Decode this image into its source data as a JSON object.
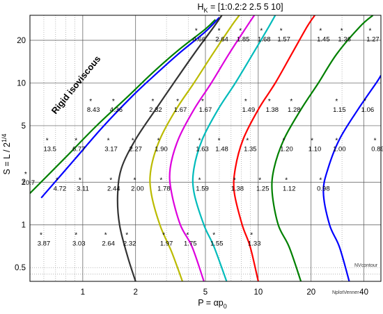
{
  "chart_data": {
    "type": "line",
    "title": "H_K = [1:0.2:2  2.5 5 10]",
    "title_parts": {
      "main": "H",
      "sub": "K",
      "rest": " = [1:0.2:2  2.5 5 10]"
    },
    "xlabel_parts": {
      "main": "P = αp",
      "sub": "0"
    },
    "ylabel_parts": {
      "main": "S = L / 2",
      "sup": "1/4"
    },
    "x_scale": "log",
    "y_scale": "log",
    "xlim": [
      0.5,
      50
    ],
    "ylim": [
      0.4,
      30
    ],
    "x_ticks": [
      1,
      2,
      5,
      10,
      20,
      40
    ],
    "y_ticks": [
      0.5,
      1,
      2,
      5,
      10,
      20
    ],
    "x_tick_labels": [
      "1",
      "2",
      "5",
      "10",
      "20",
      "40"
    ],
    "y_tick_labels": [
      "0.5",
      "1",
      "2",
      "5",
      "10",
      "20"
    ],
    "grid": true,
    "region_label": "Rigid  isoviscous",
    "annotations": [
      "NVcontour",
      "NplotVenner"
    ],
    "series": [
      {
        "color": "#008000",
        "points": [
          [
            0.5,
            1.67
          ],
          [
            0.8,
            3.0
          ],
          [
            1.2,
            5.0
          ],
          [
            1.8,
            8.0
          ],
          [
            2.5,
            11.8
          ],
          [
            3.5,
            17.0
          ],
          [
            5.0,
            24.0
          ],
          [
            5.7,
            28.0
          ]
        ]
      },
      {
        "color": "#0000ff",
        "points": [
          [
            0.58,
            1.55
          ],
          [
            0.9,
            2.9
          ],
          [
            1.3,
            4.9
          ],
          [
            1.9,
            8.0
          ],
          [
            2.5,
            11.0
          ],
          [
            3.5,
            16.0
          ],
          [
            5.0,
            23.0
          ],
          [
            6.0,
            29.0
          ]
        ]
      },
      {
        "color": "#333333",
        "points": [
          [
            2.0,
            0.4
          ],
          [
            1.8,
            0.6
          ],
          [
            1.62,
            1.0
          ],
          [
            1.58,
            1.6
          ],
          [
            1.66,
            2.5
          ],
          [
            2.0,
            4.0
          ],
          [
            2.6,
            6.5
          ],
          [
            3.3,
            10.0
          ],
          [
            4.3,
            16.0
          ],
          [
            5.6,
            25.0
          ],
          [
            6.2,
            30.0
          ]
        ]
      },
      {
        "color": "#bbbb00",
        "points": [
          [
            3.7,
            0.4
          ],
          [
            3.2,
            0.65
          ],
          [
            2.75,
            1.0
          ],
          [
            2.45,
            1.7
          ],
          [
            2.45,
            2.5
          ],
          [
            2.75,
            4.0
          ],
          [
            3.4,
            6.5
          ],
          [
            4.3,
            10.0
          ],
          [
            5.5,
            16.0
          ],
          [
            7.0,
            25.0
          ],
          [
            7.8,
            30.0
          ]
        ]
      },
      {
        "color": "#dd00dd",
        "points": [
          [
            4.9,
            0.4
          ],
          [
            4.2,
            0.7
          ],
          [
            3.6,
            1.0
          ],
          [
            3.2,
            1.7
          ],
          [
            3.15,
            2.5
          ],
          [
            3.5,
            4.0
          ],
          [
            4.3,
            6.5
          ],
          [
            5.4,
            10.0
          ],
          [
            6.8,
            16.0
          ],
          [
            8.6,
            25.0
          ],
          [
            9.5,
            30.0
          ]
        ]
      },
      {
        "color": "#00bbbb",
        "points": [
          [
            6.6,
            0.4
          ],
          [
            5.6,
            0.7
          ],
          [
            4.9,
            1.0
          ],
          [
            4.3,
            1.7
          ],
          [
            4.3,
            2.5
          ],
          [
            4.8,
            4.0
          ],
          [
            5.9,
            6.5
          ],
          [
            7.4,
            10.0
          ],
          [
            9.3,
            16.0
          ],
          [
            11.5,
            25.0
          ],
          [
            12.5,
            30.0
          ]
        ]
      },
      {
        "color": "#ff0000",
        "points": [
          [
            10.0,
            0.4
          ],
          [
            9.0,
            0.7
          ],
          [
            8.1,
            1.0
          ],
          [
            7.3,
            1.7
          ],
          [
            7.4,
            2.5
          ],
          [
            8.2,
            4.0
          ],
          [
            10.0,
            6.5
          ],
          [
            12.5,
            10.0
          ],
          [
            15.5,
            16.0
          ],
          [
            19.0,
            25.0
          ],
          [
            21.0,
            30.0
          ]
        ]
      },
      {
        "color": "#008000",
        "points": [
          [
            17.5,
            0.4
          ],
          [
            15.0,
            0.7
          ],
          [
            13.0,
            1.0
          ],
          [
            12.0,
            1.7
          ],
          [
            12.3,
            2.5
          ],
          [
            14.0,
            4.0
          ],
          [
            17.5,
            6.5
          ],
          [
            22.0,
            10.0
          ],
          [
            28.0,
            16.0
          ],
          [
            38.0,
            25.0
          ],
          [
            45.0,
            30.0
          ]
        ]
      },
      {
        "color": "#0000ff",
        "points": [
          [
            33.0,
            0.4
          ],
          [
            29.0,
            0.7
          ],
          [
            25.5,
            1.0
          ],
          [
            23.5,
            1.7
          ],
          [
            25.0,
            2.5
          ],
          [
            29.0,
            4.0
          ],
          [
            37.0,
            6.5
          ],
          [
            47.0,
            10.0
          ],
          [
            50.0,
            11.3
          ]
        ]
      }
    ],
    "point_labels": [
      {
        "x": 4.6,
        "y": 22,
        "text": "4.66"
      },
      {
        "x": 6.2,
        "y": 22,
        "text": "2.64"
      },
      {
        "x": 8.2,
        "y": 22,
        "text": "1.85"
      },
      {
        "x": 10.8,
        "y": 22,
        "text": "1.68"
      },
      {
        "x": 14.0,
        "y": 22,
        "text": "1.57"
      },
      {
        "x": 23.5,
        "y": 22,
        "text": "1.45"
      },
      {
        "x": 31.0,
        "y": 22,
        "text": "1.36"
      },
      {
        "x": 45.0,
        "y": 22,
        "text": "1.27"
      },
      {
        "x": 1.15,
        "y": 7.0,
        "text": "8.43"
      },
      {
        "x": 1.55,
        "y": 7.0,
        "text": "4.36"
      },
      {
        "x": 2.6,
        "y": 7.0,
        "text": "2.32"
      },
      {
        "x": 3.6,
        "y": 7.0,
        "text": "1.67"
      },
      {
        "x": 5.0,
        "y": 7.0,
        "text": "1.67"
      },
      {
        "x": 8.8,
        "y": 7.0,
        "text": "1.49"
      },
      {
        "x": 12.0,
        "y": 7.0,
        "text": "1.38"
      },
      {
        "x": 16.0,
        "y": 7.0,
        "text": "1.28"
      },
      {
        "x": 29.0,
        "y": 7.0,
        "text": "1.15"
      },
      {
        "x": 42.0,
        "y": 7.0,
        "text": "1.06"
      },
      {
        "x": 0.65,
        "y": 3.7,
        "text": "13.5"
      },
      {
        "x": 0.95,
        "y": 3.7,
        "text": "6.77"
      },
      {
        "x": 1.45,
        "y": 3.7,
        "text": "3.17"
      },
      {
        "x": 2.0,
        "y": 3.7,
        "text": "2.27"
      },
      {
        "x": 2.8,
        "y": 3.7,
        "text": "1.90"
      },
      {
        "x": 4.8,
        "y": 3.7,
        "text": "1.63"
      },
      {
        "x": 6.2,
        "y": 3.7,
        "text": "1.48"
      },
      {
        "x": 9.0,
        "y": 3.7,
        "text": "1.35"
      },
      {
        "x": 14.5,
        "y": 3.7,
        "text": "1.20"
      },
      {
        "x": 21.0,
        "y": 3.7,
        "text": "1.10"
      },
      {
        "x": 29.0,
        "y": 3.7,
        "text": "1.00"
      },
      {
        "x": 48.0,
        "y": 3.7,
        "text": "0.89"
      },
      {
        "x": 0.49,
        "y": 2.15,
        "text": "10.7"
      },
      {
        "x": 0.74,
        "y": 1.95,
        "text": "4.72"
      },
      {
        "x": 1.0,
        "y": 1.95,
        "text": "3.11"
      },
      {
        "x": 1.5,
        "y": 1.95,
        "text": "2.44"
      },
      {
        "x": 2.05,
        "y": 1.95,
        "text": "2.00"
      },
      {
        "x": 2.9,
        "y": 1.95,
        "text": "1.78"
      },
      {
        "x": 4.8,
        "y": 1.95,
        "text": "1.59"
      },
      {
        "x": 7.6,
        "y": 1.95,
        "text": "1.38"
      },
      {
        "x": 10.6,
        "y": 1.95,
        "text": "1.25"
      },
      {
        "x": 15.0,
        "y": 1.95,
        "text": "1.12"
      },
      {
        "x": 23.5,
        "y": 1.95,
        "text": "0.98"
      },
      {
        "x": 0.6,
        "y": 0.8,
        "text": "3.87"
      },
      {
        "x": 0.95,
        "y": 0.8,
        "text": "3.03"
      },
      {
        "x": 1.4,
        "y": 0.8,
        "text": "2.64"
      },
      {
        "x": 1.85,
        "y": 0.8,
        "text": "2.32"
      },
      {
        "x": 3.0,
        "y": 0.8,
        "text": "1.97"
      },
      {
        "x": 4.1,
        "y": 0.8,
        "text": "1.75"
      },
      {
        "x": 5.8,
        "y": 0.8,
        "text": "1.55"
      },
      {
        "x": 9.5,
        "y": 0.8,
        "text": "1.33"
      }
    ]
  }
}
